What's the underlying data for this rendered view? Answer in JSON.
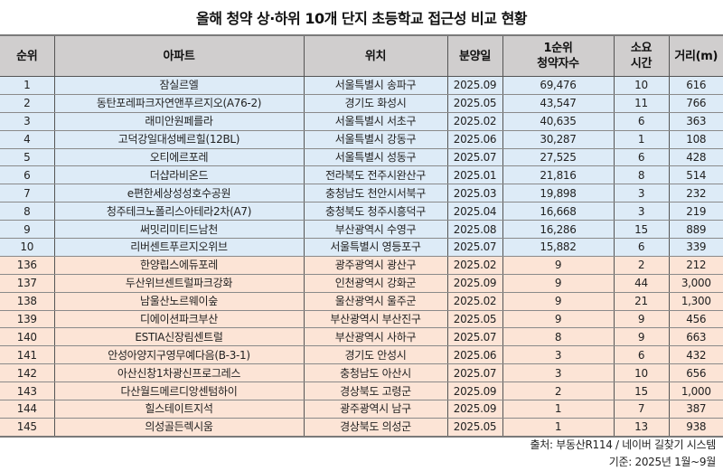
{
  "title": "올해 청약 상·하위 10개 단지 초등학교 접근성 비교 현황",
  "table": {
    "headers": {
      "rank": "순위",
      "apartment": "아파트",
      "location": "위치",
      "sale_date": "분양일",
      "applicants_line1": "1순위",
      "applicants_line2": "청약자수",
      "time_line1": "소요",
      "time_line2": "시간",
      "distance": "거리(m)"
    },
    "colors": {
      "header_bg": "#d0cece",
      "top10_bg": "#ddebf7",
      "bottom10_bg": "#fce4d6"
    },
    "rows": [
      {
        "rank": "1",
        "apartment": "잠실르엘",
        "location": "서울특별시 송파구",
        "sale_date": "2025.09",
        "applicants": "69,476",
        "time": "10",
        "distance": "616",
        "group": "top"
      },
      {
        "rank": "2",
        "apartment": "동탄포레파크자연앤푸르지오(A76-2)",
        "location": "경기도 화성시",
        "sale_date": "2025.05",
        "applicants": "43,547",
        "time": "11",
        "distance": "766",
        "group": "top"
      },
      {
        "rank": "3",
        "apartment": "래미안원페를라",
        "location": "서울특별시 서초구",
        "sale_date": "2025.02",
        "applicants": "40,635",
        "time": "6",
        "distance": "363",
        "group": "top"
      },
      {
        "rank": "4",
        "apartment": "고덕강일대성베르힐(12BL)",
        "location": "서울특별시 강동구",
        "sale_date": "2025.06",
        "applicants": "30,287",
        "time": "1",
        "distance": "108",
        "group": "top"
      },
      {
        "rank": "5",
        "apartment": "오티에르포레",
        "location": "서울특별시 성동구",
        "sale_date": "2025.07",
        "applicants": "27,525",
        "time": "6",
        "distance": "428",
        "group": "top"
      },
      {
        "rank": "6",
        "apartment": "더샵라비온드",
        "location": "전라북도 전주시완산구",
        "sale_date": "2025.01",
        "applicants": "21,816",
        "time": "8",
        "distance": "514",
        "group": "top"
      },
      {
        "rank": "7",
        "apartment": "e편한세상성성호수공원",
        "location": "충청남도 천안시서북구",
        "sale_date": "2025.03",
        "applicants": "19,898",
        "time": "3",
        "distance": "232",
        "group": "top"
      },
      {
        "rank": "8",
        "apartment": "청주테크노폴리스아테라2차(A7)",
        "location": "충청북도 청주시흥덕구",
        "sale_date": "2025.04",
        "applicants": "16,668",
        "time": "3",
        "distance": "219",
        "group": "top"
      },
      {
        "rank": "9",
        "apartment": "써밋리미티드남천",
        "location": "부산광역시 수영구",
        "sale_date": "2025.08",
        "applicants": "16,286",
        "time": "15",
        "distance": "889",
        "group": "top"
      },
      {
        "rank": "10",
        "apartment": "리버센트푸르지오위브",
        "location": "서울특별시 영등포구",
        "sale_date": "2025.07",
        "applicants": "15,882",
        "time": "6",
        "distance": "339",
        "group": "top"
      },
      {
        "rank": "136",
        "apartment": "한양립스에듀포레",
        "location": "광주광역시 광산구",
        "sale_date": "2025.02",
        "applicants": "9",
        "time": "2",
        "distance": "212",
        "group": "bottom"
      },
      {
        "rank": "137",
        "apartment": "두산위브센트럴파크강화",
        "location": "인천광역시 강화군",
        "sale_date": "2025.09",
        "applicants": "9",
        "time": "44",
        "distance": "3,000",
        "group": "bottom"
      },
      {
        "rank": "138",
        "apartment": "남울산노르웨이숲",
        "location": "울산광역시 울주군",
        "sale_date": "2025.02",
        "applicants": "9",
        "time": "21",
        "distance": "1,300",
        "group": "bottom"
      },
      {
        "rank": "139",
        "apartment": "디에이션파크부산",
        "location": "부산광역시 부산진구",
        "sale_date": "2025.05",
        "applicants": "9",
        "time": "9",
        "distance": "456",
        "group": "bottom"
      },
      {
        "rank": "140",
        "apartment": "ESTIA신장림센트럴",
        "location": "부산광역시 사하구",
        "sale_date": "2025.07",
        "applicants": "8",
        "time": "9",
        "distance": "663",
        "group": "bottom"
      },
      {
        "rank": "141",
        "apartment": "안성아양지구영무예다음(B-3-1)",
        "location": "경기도 안성시",
        "sale_date": "2025.06",
        "applicants": "3",
        "time": "6",
        "distance": "432",
        "group": "bottom"
      },
      {
        "rank": "142",
        "apartment": "아산신창1차광신프로그레스",
        "location": "충청남도 아산시",
        "sale_date": "2025.07",
        "applicants": "3",
        "time": "10",
        "distance": "656",
        "group": "bottom"
      },
      {
        "rank": "143",
        "apartment": "다산월드메르디앙센텀하이",
        "location": "경상북도 고령군",
        "sale_date": "2025.09",
        "applicants": "2",
        "time": "15",
        "distance": "1,000",
        "group": "bottom"
      },
      {
        "rank": "144",
        "apartment": "힐스테이트지석",
        "location": "광주광역시 남구",
        "sale_date": "2025.09",
        "applicants": "1",
        "time": "7",
        "distance": "387",
        "group": "bottom"
      },
      {
        "rank": "145",
        "apartment": "의성골든렉시움",
        "location": "경상북도 의성군",
        "sale_date": "2025.05",
        "applicants": "1",
        "time": "13",
        "distance": "938",
        "group": "bottom"
      }
    ]
  },
  "notes": {
    "source": "출처: 부동산R114 / 네이버 길찾기 시스템",
    "basis": "기준: 2025년 1월~9월"
  }
}
